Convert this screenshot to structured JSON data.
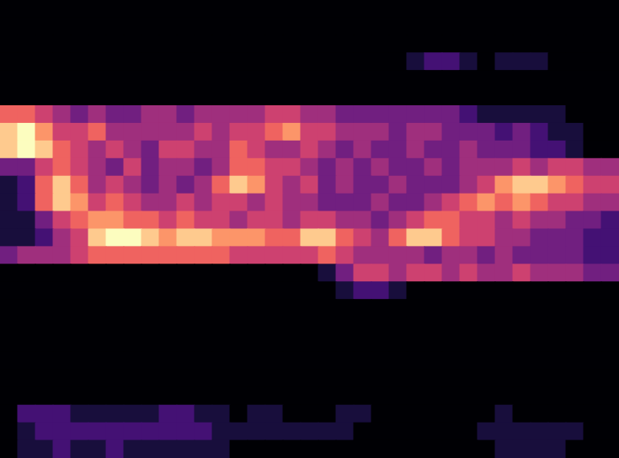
{
  "chart_data": {
    "type": "heatmap",
    "color": "magma",
    "color_range": [
      0,
      9
    ],
    "grid": false,
    "tick_labels": false,
    "cells": [
      [
        0,
        0,
        0,
        0,
        0,
        0,
        0,
        0,
        0,
        0,
        0,
        0,
        0,
        0,
        0,
        0,
        0,
        0,
        0,
        0,
        0,
        0,
        0,
        0,
        0,
        0,
        0,
        0,
        0,
        0,
        0,
        0,
        0,
        0,
        0
      ],
      [
        0,
        0,
        0,
        0,
        0,
        0,
        0,
        0,
        0,
        0,
        0,
        0,
        0,
        0,
        0,
        0,
        0,
        0,
        0,
        0,
        0,
        0,
        0,
        0,
        0,
        0,
        0,
        0,
        0,
        0,
        0,
        0,
        0,
        0,
        0
      ],
      [
        0,
        0,
        0,
        0,
        0,
        0,
        0,
        0,
        0,
        0,
        0,
        0,
        0,
        0,
        0,
        0,
        0,
        0,
        0,
        0,
        0,
        0,
        0,
        0,
        0,
        0,
        0,
        0,
        0,
        0,
        0,
        0,
        0,
        0,
        0
      ],
      [
        0,
        0,
        0,
        0,
        0,
        0,
        0,
        0,
        0,
        0,
        0,
        0,
        0,
        0,
        0,
        0,
        0,
        0,
        0,
        0,
        0,
        0,
        0,
        1,
        2,
        2,
        1,
        0,
        1,
        1,
        1,
        0,
        0,
        0,
        0
      ],
      [
        0,
        0,
        0,
        0,
        0,
        0,
        0,
        0,
        0,
        0,
        0,
        0,
        0,
        0,
        0,
        0,
        0,
        0,
        0,
        0,
        0,
        0,
        0,
        0,
        0,
        0,
        0,
        0,
        0,
        0,
        0,
        0,
        0,
        0,
        0
      ],
      [
        0,
        0,
        0,
        0,
        0,
        0,
        0,
        0,
        0,
        0,
        0,
        0,
        0,
        0,
        0,
        0,
        0,
        0,
        0,
        0,
        0,
        0,
        0,
        0,
        0,
        0,
        0,
        0,
        0,
        0,
        0,
        0,
        0,
        0,
        0
      ],
      [
        6,
        6,
        5,
        4,
        3,
        4,
        3,
        3,
        4,
        4,
        3,
        4,
        4,
        4,
        4,
        5,
        5,
        4,
        4,
        3,
        3,
        3,
        3,
        3,
        3,
        3,
        2,
        1,
        1,
        1,
        1,
        1,
        0,
        0,
        0
      ],
      [
        8,
        9,
        7,
        5,
        5,
        6,
        4,
        4,
        4,
        4,
        4,
        5,
        4,
        5,
        5,
        6,
        7,
        5,
        5,
        4,
        4,
        4,
        3,
        4,
        4,
        3,
        3,
        3,
        2,
        3,
        2,
        1,
        1,
        0,
        0
      ],
      [
        8,
        9,
        8,
        6,
        5,
        4,
        5,
        4,
        3,
        5,
        5,
        4,
        4,
        6,
        5,
        4,
        4,
        5,
        4,
        3,
        4,
        3,
        3,
        4,
        3,
        3,
        4,
        3,
        3,
        3,
        2,
        2,
        1,
        0,
        0
      ],
      [
        3,
        3,
        5,
        6,
        5,
        4,
        3,
        5,
        3,
        4,
        4,
        3,
        4,
        6,
        6,
        5,
        5,
        4,
        3,
        4,
        3,
        4,
        3,
        3,
        4,
        3,
        4,
        4,
        4,
        5,
        4,
        5,
        5,
        4,
        4
      ],
      [
        1,
        2,
        6,
        8,
        6,
        4,
        5,
        4,
        3,
        4,
        3,
        4,
        6,
        8,
        7,
        5,
        4,
        5,
        3,
        4,
        3,
        3,
        4,
        3,
        3,
        3,
        4,
        5,
        7,
        8,
        8,
        7,
        6,
        5,
        5
      ],
      [
        1,
        2,
        6,
        8,
        7,
        5,
        6,
        5,
        4,
        4,
        5,
        4,
        5,
        5,
        4,
        5,
        4,
        4,
        3,
        3,
        3,
        4,
        3,
        3,
        4,
        5,
        6,
        7,
        6,
        7,
        6,
        5,
        5,
        4,
        4
      ],
      [
        1,
        1,
        3,
        5,
        6,
        7,
        7,
        6,
        6,
        5,
        6,
        5,
        5,
        4,
        5,
        5,
        4,
        5,
        5,
        4,
        4,
        3,
        4,
        5,
        6,
        6,
        5,
        5,
        4,
        5,
        4,
        4,
        3,
        3,
        2
      ],
      [
        1,
        1,
        2,
        4,
        5,
        8,
        9,
        9,
        8,
        7,
        8,
        8,
        7,
        7,
        7,
        6,
        6,
        8,
        8,
        6,
        5,
        4,
        6,
        8,
        8,
        6,
        5,
        5,
        4,
        4,
        3,
        3,
        3,
        2,
        2
      ],
      [
        3,
        4,
        4,
        4,
        5,
        6,
        6,
        6,
        6,
        6,
        6,
        6,
        6,
        5,
        5,
        5,
        5,
        5,
        6,
        5,
        4,
        4,
        4,
        4,
        3,
        4,
        4,
        3,
        4,
        3,
        3,
        3,
        3,
        2,
        2
      ],
      [
        0,
        0,
        0,
        0,
        0,
        0,
        0,
        0,
        0,
        0,
        0,
        0,
        0,
        0,
        0,
        0,
        0,
        0,
        1,
        3,
        5,
        5,
        4,
        5,
        5,
        4,
        5,
        4,
        4,
        5,
        4,
        4,
        4,
        3,
        3
      ],
      [
        0,
        0,
        0,
        0,
        0,
        0,
        0,
        0,
        0,
        0,
        0,
        0,
        0,
        0,
        0,
        0,
        0,
        0,
        0,
        1,
        2,
        2,
        1,
        0,
        0,
        0,
        0,
        0,
        0,
        0,
        0,
        0,
        0,
        0,
        0
      ],
      [
        0,
        0,
        0,
        0,
        0,
        0,
        0,
        0,
        0,
        0,
        0,
        0,
        0,
        0,
        0,
        0,
        0,
        0,
        0,
        0,
        0,
        0,
        0,
        0,
        0,
        0,
        0,
        0,
        0,
        0,
        0,
        0,
        0,
        0,
        0
      ],
      [
        0,
        0,
        0,
        0,
        0,
        0,
        0,
        0,
        0,
        0,
        0,
        0,
        0,
        0,
        0,
        0,
        0,
        0,
        0,
        0,
        0,
        0,
        0,
        0,
        0,
        0,
        0,
        0,
        0,
        0,
        0,
        0,
        0,
        0,
        0
      ],
      [
        0,
        0,
        0,
        0,
        0,
        0,
        0,
        0,
        0,
        0,
        0,
        0,
        0,
        0,
        0,
        0,
        0,
        0,
        0,
        0,
        0,
        0,
        0,
        0,
        0,
        0,
        0,
        0,
        0,
        0,
        0,
        0,
        0,
        0,
        0
      ],
      [
        0,
        0,
        0,
        0,
        0,
        0,
        0,
        0,
        0,
        0,
        0,
        0,
        0,
        0,
        0,
        0,
        0,
        0,
        0,
        0,
        0,
        0,
        0,
        0,
        0,
        0,
        0,
        0,
        0,
        0,
        0,
        0,
        0,
        0,
        0
      ],
      [
        0,
        0,
        0,
        0,
        0,
        0,
        0,
        0,
        0,
        0,
        0,
        0,
        0,
        0,
        0,
        0,
        0,
        0,
        0,
        0,
        0,
        0,
        0,
        0,
        0,
        0,
        0,
        0,
        0,
        0,
        0,
        0,
        0,
        0,
        0
      ],
      [
        0,
        0,
        0,
        0,
        0,
        0,
        0,
        0,
        0,
        0,
        0,
        0,
        0,
        0,
        0,
        0,
        0,
        0,
        0,
        0,
        0,
        0,
        0,
        0,
        0,
        0,
        0,
        0,
        0,
        0,
        0,
        0,
        0,
        0,
        0
      ],
      [
        0,
        2,
        2,
        2,
        1,
        1,
        1,
        1,
        1,
        2,
        2,
        1,
        1,
        0,
        1,
        1,
        0,
        0,
        0,
        1,
        1,
        0,
        0,
        0,
        0,
        0,
        0,
        0,
        1,
        0,
        0,
        0,
        0,
        0,
        0
      ],
      [
        0,
        1,
        2,
        2,
        2,
        2,
        2,
        2,
        2,
        2,
        2,
        2,
        1,
        1,
        1,
        1,
        1,
        1,
        1,
        1,
        0,
        0,
        0,
        0,
        0,
        0,
        0,
        1,
        1,
        1,
        1,
        1,
        1,
        0,
        0
      ],
      [
        0,
        1,
        1,
        2,
        1,
        1,
        2,
        1,
        1,
        1,
        1,
        1,
        1,
        0,
        0,
        0,
        0,
        0,
        0,
        0,
        0,
        0,
        0,
        0,
        0,
        0,
        0,
        0,
        1,
        1,
        1,
        1,
        0,
        0,
        0
      ]
    ]
  }
}
